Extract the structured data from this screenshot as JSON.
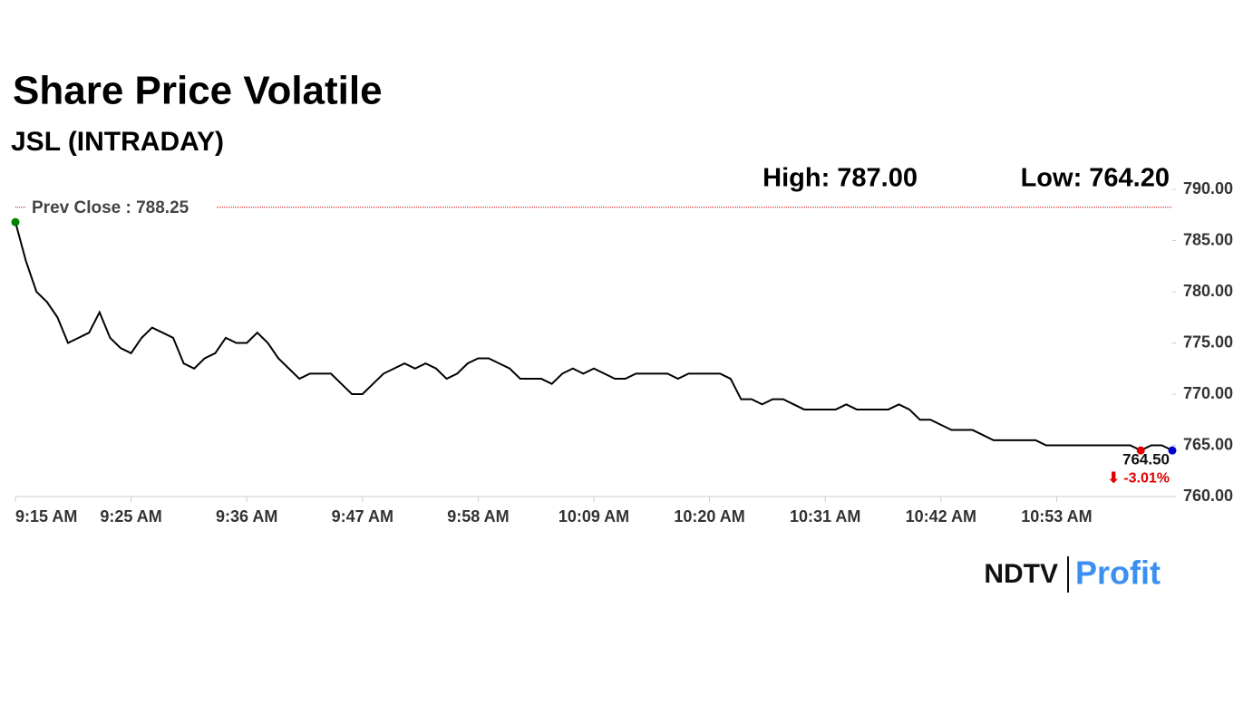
{
  "chart_data": {
    "type": "line",
    "title": "Share Price Volatile",
    "subtitle": "JSL (INTRADAY)",
    "high_label": "High: 787.00",
    "low_label": "Low: 764.20",
    "series": [
      {
        "name": "JSL",
        "color": "#000000",
        "values": [
          786.8,
          783,
          780,
          779,
          777.5,
          775,
          775.5,
          776,
          778,
          775.5,
          774.5,
          774,
          775.5,
          776.5,
          776,
          775.5,
          773,
          772.5,
          773.5,
          774,
          775.5,
          775,
          775,
          776,
          775,
          773.5,
          772.5,
          771.5,
          772,
          772,
          772,
          771,
          770,
          770,
          771,
          772,
          772.5,
          773,
          772.5,
          773,
          772.5,
          771.5,
          772,
          773,
          773.5,
          773.5,
          773,
          772.5,
          771.5,
          771.5,
          771.5,
          771,
          772,
          772.5,
          772,
          772.5,
          772,
          771.5,
          771.5,
          772,
          772,
          772,
          772,
          771.5,
          772,
          772,
          772,
          772,
          771.5,
          769.5,
          769.5,
          769,
          769.5,
          769.5,
          769,
          768.5,
          768.5,
          768.5,
          768.5,
          769,
          768.5,
          768.5,
          768.5,
          768.5,
          769,
          768.5,
          767.5,
          767.5,
          767,
          766.5,
          766.5,
          766.5,
          766,
          765.5,
          765.5,
          765.5,
          765.5,
          765.5,
          765,
          765,
          765,
          765,
          765,
          765,
          765,
          765,
          765,
          764.5,
          765,
          765,
          764.5
        ]
      }
    ],
    "xlim": [
      0,
      110
    ],
    "xticks": [
      {
        "value": 0,
        "label": "9:15 AM"
      },
      {
        "value": 11,
        "label": "9:25 AM"
      },
      {
        "value": 22,
        "label": "9:36 AM"
      },
      {
        "value": 33,
        "label": "9:47 AM"
      },
      {
        "value": 44,
        "label": "9:58 AM"
      },
      {
        "value": 55,
        "label": "10:09 AM"
      },
      {
        "value": 66,
        "label": "10:20 AM"
      },
      {
        "value": 77,
        "label": "10:31 AM"
      },
      {
        "value": 88,
        "label": "10:42 AM"
      },
      {
        "value": 99,
        "label": "10:53 AM"
      }
    ],
    "ylim": [
      760,
      790
    ],
    "yticks": [
      {
        "value": 760,
        "label": "760.00"
      },
      {
        "value": 765,
        "label": "765.00"
      },
      {
        "value": 770,
        "label": "770.00"
      },
      {
        "value": 775,
        "label": "775.00"
      },
      {
        "value": 780,
        "label": "780.00"
      },
      {
        "value": 785,
        "label": "785.00"
      },
      {
        "value": 790,
        "label": "790.00"
      }
    ],
    "reference_line": {
      "value": 788.25,
      "label": "Prev Close : 788.25",
      "color": "#cc0000"
    },
    "last_point": {
      "index": 107,
      "label": "764.50",
      "change": "⬇ -3.01%",
      "color": "#e00000"
    },
    "start_color": "#008000",
    "end_color": "#0000cc",
    "logo": {
      "left": "NDTV",
      "right": "Profit"
    }
  }
}
